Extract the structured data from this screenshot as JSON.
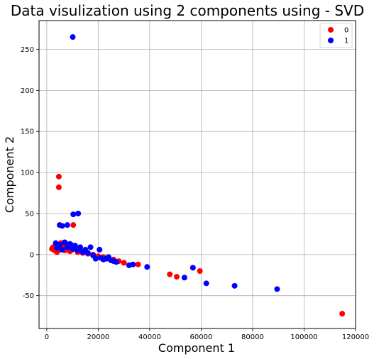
{
  "chart_data": {
    "type": "scatter",
    "title": "Data visulization using 2 components using - SVD",
    "xlabel": "Component 1",
    "ylabel": "Component 2",
    "xlim": [
      -3000,
      120000
    ],
    "ylim": [
      -90,
      285
    ],
    "xticks": [
      0,
      20000,
      40000,
      60000,
      80000,
      100000,
      120000
    ],
    "yticks": [
      -50,
      0,
      50,
      100,
      150,
      200,
      250
    ],
    "grid": true,
    "legend_position": "top-right",
    "series": [
      {
        "name": "0",
        "color": "#ff0000",
        "points": [
          [
            4700,
            95
          ],
          [
            4700,
            82
          ],
          [
            10300,
            36
          ],
          [
            2000,
            7
          ],
          [
            2500,
            9
          ],
          [
            3000,
            5
          ],
          [
            3500,
            10
          ],
          [
            4000,
            3
          ],
          [
            4500,
            12
          ],
          [
            5000,
            6
          ],
          [
            5500,
            14
          ],
          [
            6000,
            8
          ],
          [
            6500,
            11
          ],
          [
            7000,
            5
          ],
          [
            7500,
            13
          ],
          [
            8000,
            7
          ],
          [
            8500,
            10
          ],
          [
            9000,
            4
          ],
          [
            9500,
            12
          ],
          [
            10000,
            6
          ],
          [
            11000,
            9
          ],
          [
            12000,
            3
          ],
          [
            13000,
            5
          ],
          [
            14000,
            2
          ],
          [
            15000,
            4
          ],
          [
            16000,
            1
          ],
          [
            18000,
            0
          ],
          [
            20000,
            -2
          ],
          [
            22000,
            -3
          ],
          [
            24000,
            -5
          ],
          [
            26000,
            -6
          ],
          [
            28000,
            -8
          ],
          [
            30000,
            -10
          ],
          [
            35500,
            -12
          ],
          [
            47800,
            -24
          ],
          [
            50500,
            -27
          ],
          [
            59500,
            -20
          ],
          [
            114800,
            -72
          ]
        ]
      },
      {
        "name": "1",
        "color": "#0000ff",
        "points": [
          [
            10100,
            265
          ],
          [
            10300,
            49
          ],
          [
            12200,
            50
          ],
          [
            5000,
            36
          ],
          [
            6000,
            35
          ],
          [
            8000,
            36
          ],
          [
            3500,
            14
          ],
          [
            4000,
            8
          ],
          [
            5000,
            12
          ],
          [
            6000,
            6
          ],
          [
            7000,
            15
          ],
          [
            8000,
            9
          ],
          [
            9000,
            13
          ],
          [
            10000,
            7
          ],
          [
            11000,
            11
          ],
          [
            12000,
            5
          ],
          [
            13000,
            9
          ],
          [
            14000,
            3
          ],
          [
            15000,
            6
          ],
          [
            16000,
            2
          ],
          [
            17000,
            9
          ],
          [
            18000,
            -1
          ],
          [
            19000,
            -5
          ],
          [
            20500,
            6
          ],
          [
            21000,
            -4
          ],
          [
            22000,
            -6
          ],
          [
            23000,
            -5
          ],
          [
            24000,
            -3
          ],
          [
            25000,
            -7
          ],
          [
            26000,
            -8
          ],
          [
            27000,
            -9
          ],
          [
            32000,
            -13
          ],
          [
            33500,
            -12
          ],
          [
            39000,
            -15
          ],
          [
            53500,
            -28
          ],
          [
            56800,
            -16
          ],
          [
            62000,
            -35
          ],
          [
            73000,
            -38
          ],
          [
            89500,
            -42
          ]
        ]
      }
    ]
  }
}
